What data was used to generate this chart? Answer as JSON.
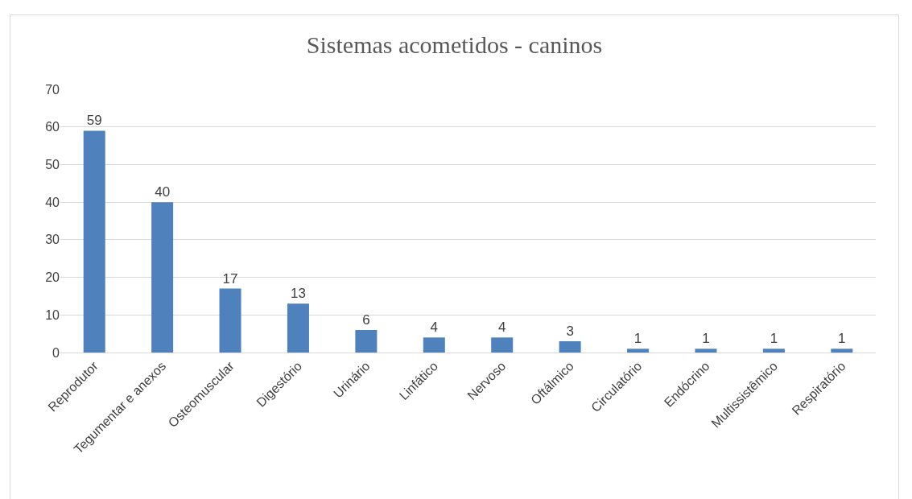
{
  "chart_data": {
    "type": "bar",
    "title": "Sistemas acometidos - caninos",
    "categories": [
      "Reprodutor",
      "Tegumentar e anexos",
      "Osteomuscular",
      "Digestório",
      "Urinário",
      "Linfático",
      "Nervoso",
      "Oftálmico",
      "Circulatório",
      "Endócrino",
      "Multissistêmico",
      "Respiratório"
    ],
    "values": [
      59,
      40,
      17,
      13,
      6,
      4,
      4,
      3,
      1,
      1,
      1,
      1
    ],
    "color": "#4f81bd",
    "ylim": [
      0,
      70
    ],
    "yticks": [
      0,
      10,
      20,
      30,
      40,
      50,
      60,
      70
    ],
    "grid": "y",
    "data_labels": true,
    "legend": false
  }
}
